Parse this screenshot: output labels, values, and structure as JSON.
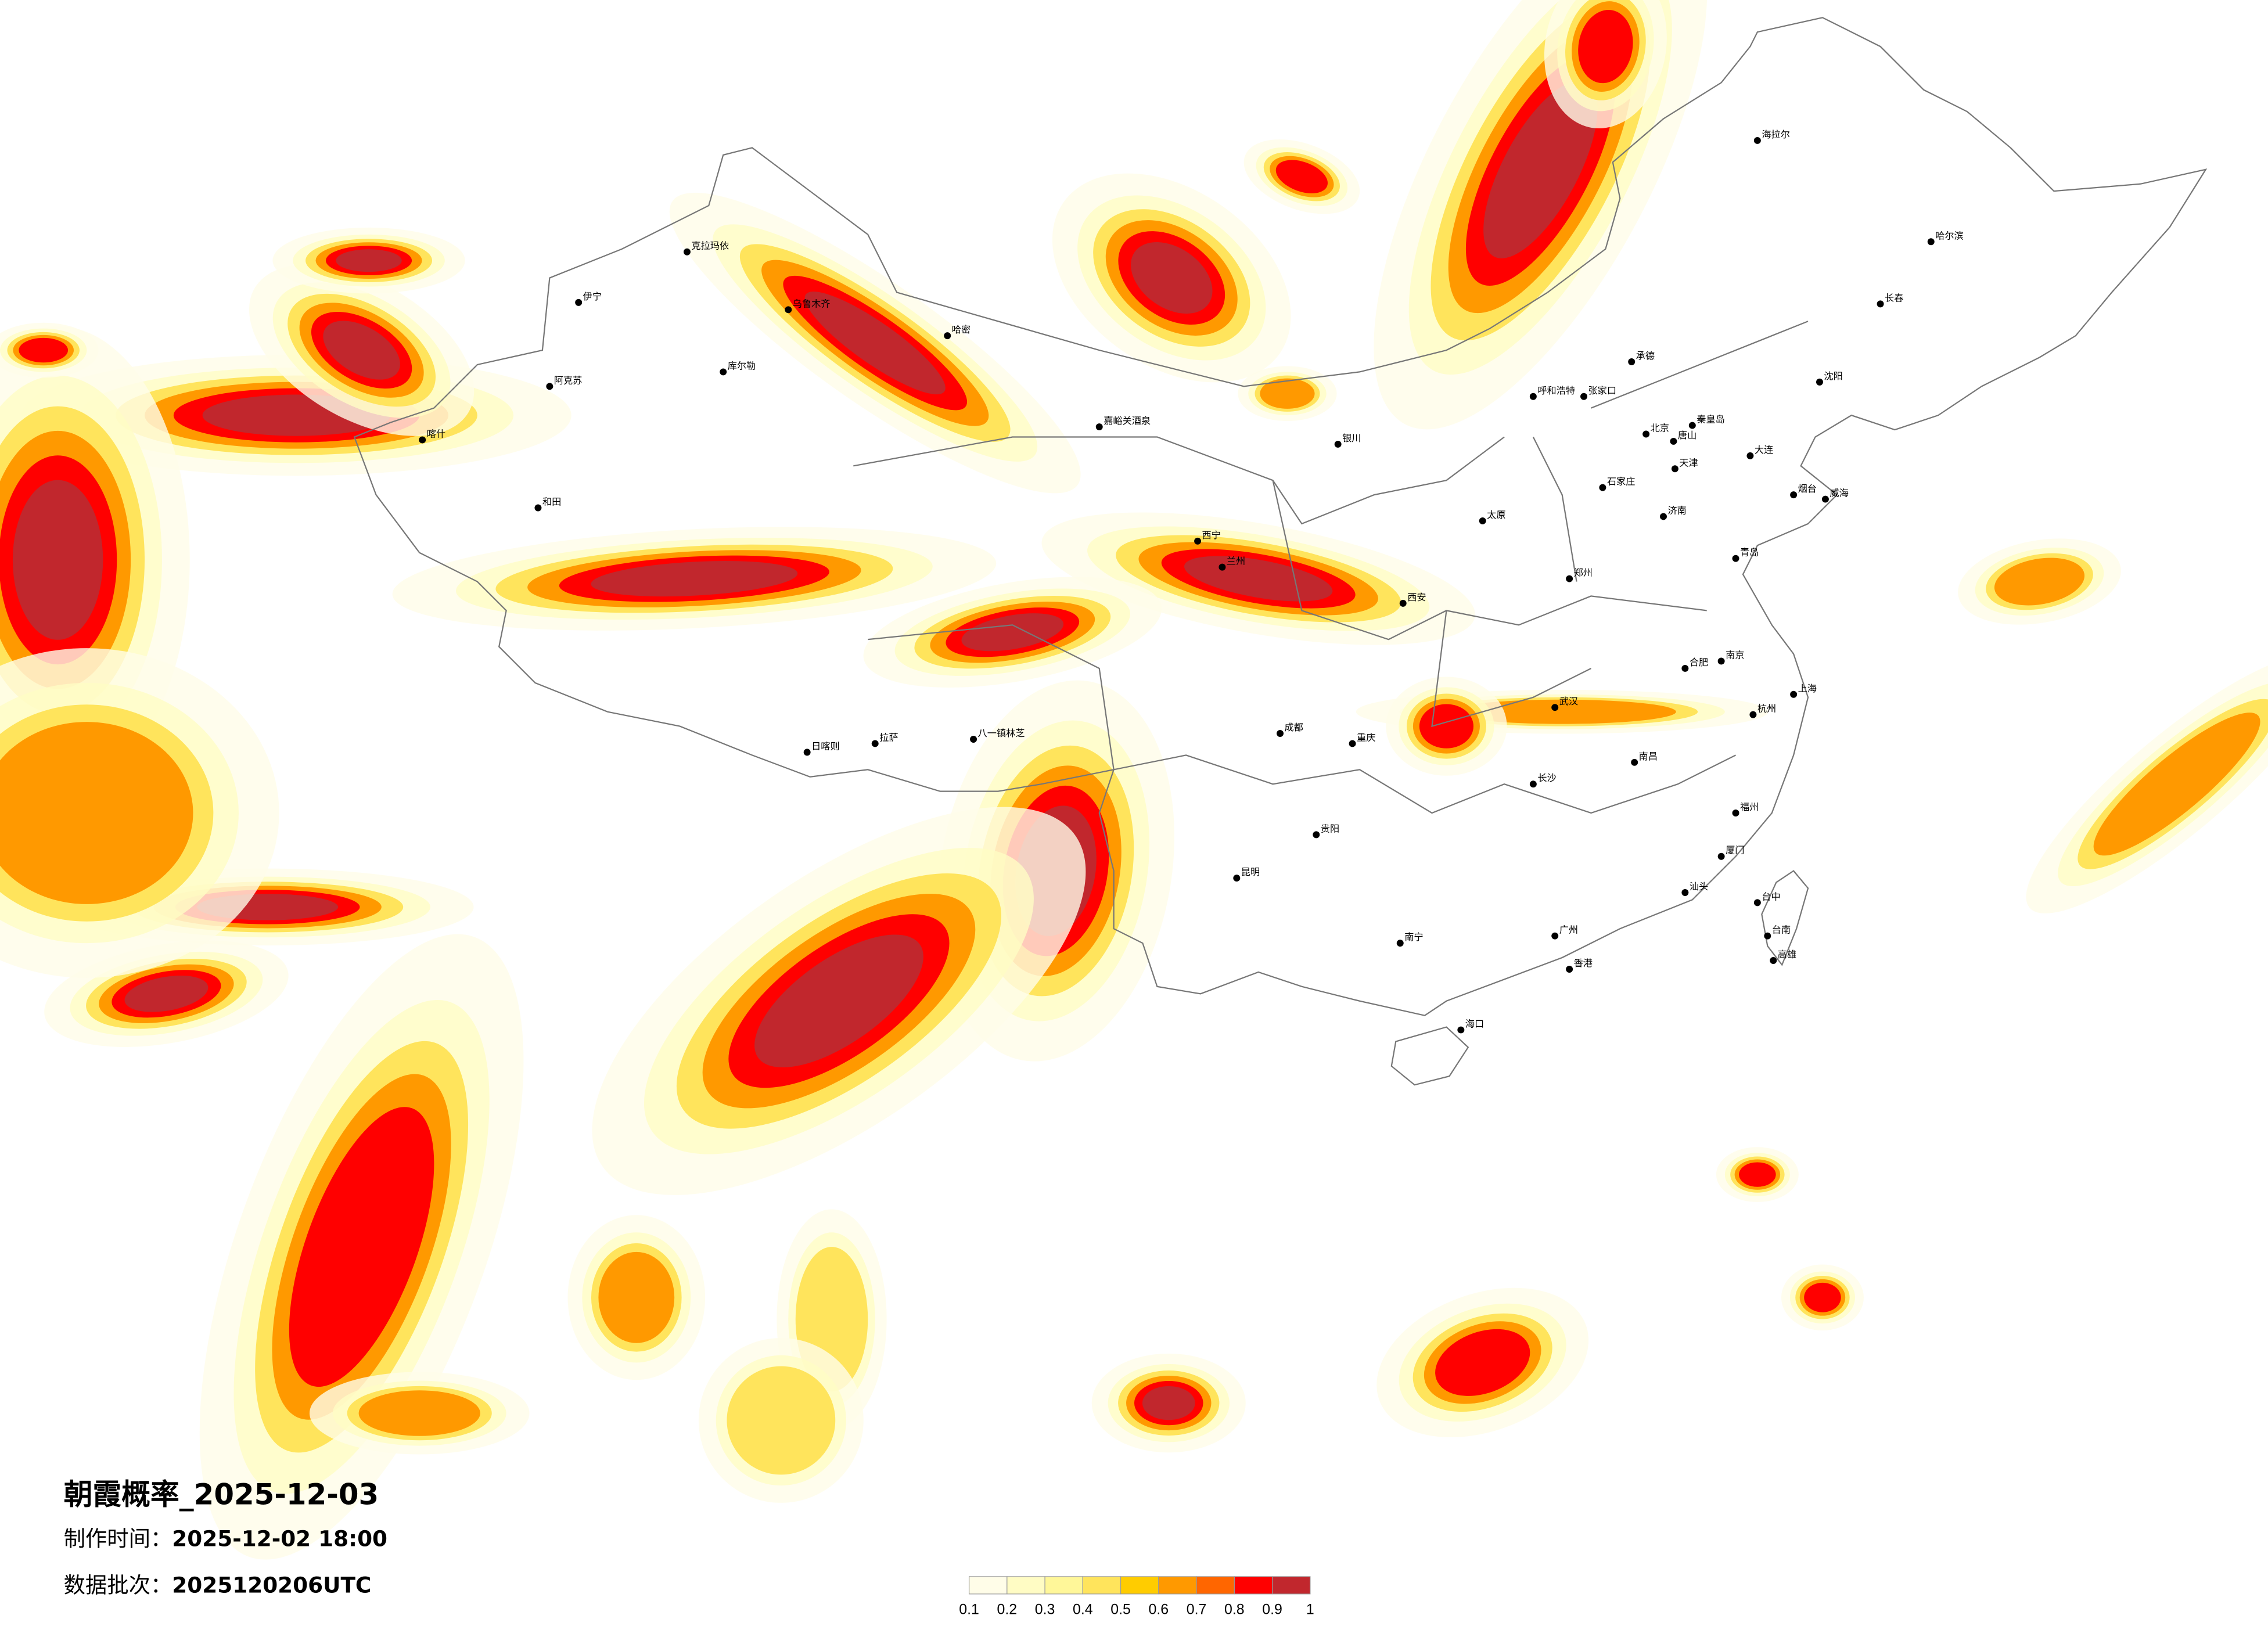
{
  "title": "朝霞概率_2025-12-03",
  "meta": {
    "made_label": "制作时间：",
    "made_value": "2025-12-02 18:00",
    "batch_label": "数据批次：",
    "batch_value": "2025120206UTC"
  },
  "legend": {
    "ticks": [
      "0.1",
      "0.2",
      "0.3",
      "0.4",
      "0.5",
      "0.6",
      "0.7",
      "0.8",
      "0.9",
      "1"
    ],
    "colors": [
      "#fffde8",
      "#fffcc4",
      "#fff799",
      "#ffe45c",
      "#ffcc00",
      "#ff9900",
      "#ff6600",
      "#ff0000",
      "#c1272d"
    ]
  },
  "cities": [
    "北京",
    "天津",
    "石家庄",
    "太原",
    "呼和浩特",
    "济南",
    "青岛",
    "郑州",
    "西安",
    "兰州",
    "西宁",
    "银川",
    "乌鲁木齐",
    "伊宁",
    "克拉玛依",
    "阿克苏",
    "喀什",
    "和田",
    "哈密",
    "库尔勒",
    "嘉峪关酒泉",
    "拉萨",
    "日喀则",
    "八一镇林芝",
    "成都",
    "重庆",
    "昆明",
    "贵阳",
    "南宁",
    "广州",
    "香港",
    "海口",
    "福州",
    "台中",
    "台南",
    "高雄",
    "上海",
    "南京",
    "杭州",
    "武汉",
    "长沙",
    "南昌",
    "合肥",
    "大连",
    "沈阳",
    "长春",
    "哈尔滨",
    "海拉尔",
    "张家口",
    "承德",
    "唐山",
    "秦皇岛",
    "烟台",
    "威海",
    "汕头",
    "厦门"
  ]
}
